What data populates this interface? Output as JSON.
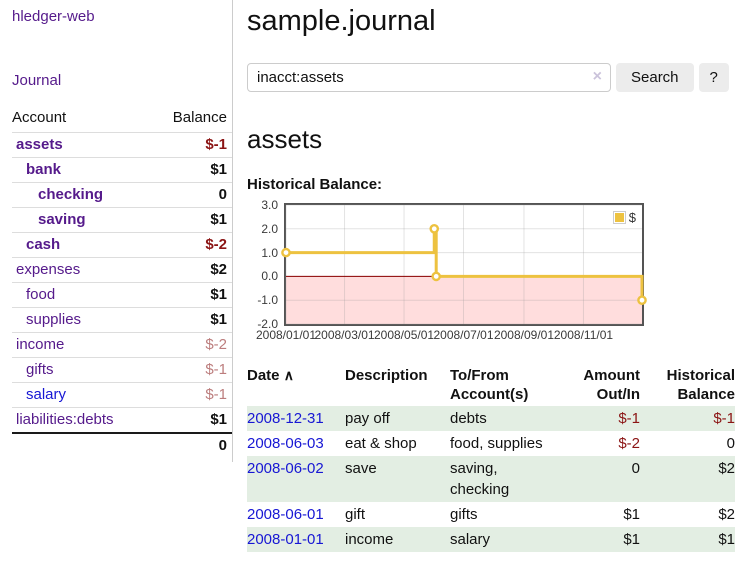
{
  "colors": {
    "link_purple": "#551A8B",
    "link_blue": "#1717D4",
    "negative_strong": "#8B1414",
    "negative_muted": "#BC7D7D",
    "row_green": "#E3EEE3",
    "chart_line_gold": "#EDC240",
    "chart_negative_fill": "#FFDDDD",
    "chart_zero_line": "#8B0000"
  },
  "sidebar": {
    "brand": "hledger-web",
    "journal_link": "Journal",
    "accounts": {
      "header_account": "Account",
      "header_balance": "Balance",
      "rows": [
        {
          "name": "assets",
          "balance": "$-1"
        },
        {
          "name": "bank",
          "balance": "$1"
        },
        {
          "name": "checking",
          "balance": "0"
        },
        {
          "name": "saving",
          "balance": "$1"
        },
        {
          "name": "cash",
          "balance": "$-2"
        },
        {
          "name": "expenses",
          "balance": "$2"
        },
        {
          "name": "food",
          "balance": "$1"
        },
        {
          "name": "supplies",
          "balance": "$1"
        },
        {
          "name": "income",
          "balance": "$-2"
        },
        {
          "name": "gifts",
          "balance": "$-1"
        },
        {
          "name": "salary",
          "balance": "$-1"
        },
        {
          "name": "liabilities:debts",
          "balance": "$1"
        }
      ],
      "total": "0"
    }
  },
  "main": {
    "title": "sample.journal",
    "search": {
      "query": "inacct:assets",
      "clear_icon": "×",
      "search_button": "Search",
      "help_button": "?"
    },
    "account_heading": "assets",
    "section_label": "Historical Balance:"
  },
  "chart_data": {
    "type": "line",
    "step": true,
    "title": "Historical Balance",
    "series": [
      {
        "name": "$",
        "color": "#EDC240",
        "points": [
          [
            "2008-01-01",
            1
          ],
          [
            "2008-06-01",
            2
          ],
          [
            "2008-06-03",
            0
          ],
          [
            "2008-12-31",
            -1
          ]
        ]
      }
    ],
    "x_ticks": [
      "2008/01/01",
      "2008/03/01",
      "2008/05/01",
      "2008/07/01",
      "2008/09/01",
      "2008/11/01"
    ],
    "y_ticks": [
      "3.0",
      "2.0",
      "1.0",
      "0.0",
      "-1.0",
      "-2.0"
    ],
    "xlim": [
      "2008-01-01",
      "2008-12-31"
    ],
    "ylim": [
      -2,
      3
    ],
    "grid": true,
    "legend_position": "top-right",
    "negative_region_color": "#FFDDDD",
    "zero_line_color": "#8B0000"
  },
  "register": {
    "headers": {
      "date": "Date",
      "sort_icon": "∧",
      "description": "Description",
      "accounts": "To/From Account(s)",
      "amount": "Amount Out/In",
      "balance": "Historical Balance"
    },
    "rows": [
      {
        "date": "2008-12-31",
        "description": "pay off",
        "accounts": "debts",
        "amount": "$-1",
        "balance": "$-1"
      },
      {
        "date": "2008-06-03",
        "description": "eat & shop",
        "accounts": "food, supplies",
        "amount": "$-2",
        "balance": "0"
      },
      {
        "date": "2008-06-02",
        "description": "save",
        "accounts": "saving, checking",
        "amount": "0",
        "balance": "$2"
      },
      {
        "date": "2008-06-01",
        "description": "gift",
        "accounts": "gifts",
        "amount": "$1",
        "balance": "$2"
      },
      {
        "date": "2008-01-01",
        "description": "income",
        "accounts": "salary",
        "amount": "$1",
        "balance": "$1"
      }
    ]
  }
}
